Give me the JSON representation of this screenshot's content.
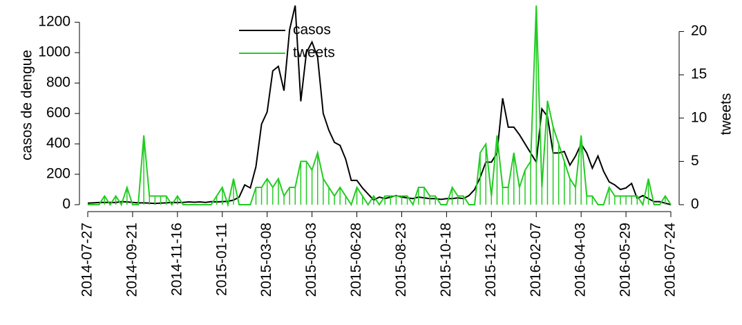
{
  "chart_data": {
    "type": "line",
    "y_label": "casos de dengue",
    "y2_label": "tweets",
    "categories": [
      "2014-07-27",
      null,
      null,
      null,
      null,
      null,
      null,
      null,
      "2014-09-21",
      null,
      null,
      null,
      null,
      null,
      null,
      null,
      "2014-11-16",
      null,
      null,
      null,
      null,
      null,
      null,
      null,
      "2015-01-11",
      null,
      null,
      null,
      null,
      null,
      null,
      null,
      "2015-03-08",
      null,
      null,
      null,
      null,
      null,
      null,
      null,
      "2015-05-03",
      null,
      null,
      null,
      null,
      null,
      null,
      null,
      "2015-06-28",
      null,
      null,
      null,
      null,
      null,
      null,
      null,
      "2015-08-23",
      null,
      null,
      null,
      null,
      null,
      null,
      null,
      "2015-10-18",
      null,
      null,
      null,
      null,
      null,
      null,
      null,
      "2015-12-13",
      null,
      null,
      null,
      null,
      null,
      null,
      null,
      "2016-02-07",
      null,
      null,
      null,
      null,
      null,
      null,
      null,
      "2016-04-03",
      null,
      null,
      null,
      null,
      null,
      null,
      null,
      "2016-05-29",
      null,
      null,
      null,
      null,
      null,
      null,
      null,
      "2016-07-24"
    ],
    "series": [
      {
        "name": "casos",
        "color": "#000000",
        "values": [
          10,
          12,
          14,
          15,
          15,
          14,
          20,
          18,
          15,
          12,
          12,
          10,
          8,
          10,
          12,
          15,
          14,
          15,
          18,
          16,
          18,
          15,
          20,
          18,
          20,
          22,
          30,
          50,
          130,
          110,
          250,
          530,
          610,
          880,
          910,
          750,
          1150,
          1310,
          680,
          1000,
          1070,
          970,
          600,
          490,
          410,
          390,
          300,
          160,
          160,
          110,
          70,
          30,
          50,
          40,
          50,
          60,
          50,
          45,
          40,
          50,
          45,
          40,
          40,
          35,
          40,
          40,
          45,
          40,
          60,
          100,
          180,
          280,
          280,
          340,
          700,
          510,
          510,
          460,
          400,
          340,
          280,
          630,
          580,
          340,
          340,
          350,
          260,
          320,
          400,
          340,
          240,
          320,
          220,
          150,
          130,
          100,
          110,
          140,
          40,
          60,
          40,
          20,
          20,
          10,
          0
        ]
      },
      {
        "name": "tweets",
        "color": "#22cc22",
        "axis": "y2",
        "values": [
          0,
          0,
          0,
          1,
          0,
          1,
          0,
          2,
          0,
          0,
          8,
          1,
          1,
          1,
          1,
          0,
          1,
          0,
          0,
          0,
          0,
          0,
          0,
          1,
          2,
          0,
          3,
          0,
          0,
          0,
          2,
          2,
          3,
          2,
          3,
          1,
          2,
          2,
          5,
          5,
          4,
          6,
          3,
          2,
          1,
          2,
          1,
          0,
          2,
          1,
          0,
          1,
          0,
          1,
          1,
          1,
          1,
          1,
          0,
          2,
          2,
          1,
          1,
          0,
          0,
          2,
          1,
          1,
          0,
          0,
          6,
          7,
          1,
          8,
          2,
          2,
          6,
          2,
          4,
          5,
          23,
          2,
          12,
          9,
          7,
          5,
          3,
          2,
          8,
          1,
          1,
          0,
          0,
          2,
          1,
          1,
          1,
          1,
          1,
          0,
          3,
          0,
          0,
          1,
          0
        ]
      }
    ],
    "ylim": [
      0,
      1310
    ],
    "yticks": [
      0,
      200,
      400,
      600,
      800,
      1000,
      1200
    ],
    "y2lim": [
      0,
      23
    ],
    "y2ticks": [
      0,
      5,
      10,
      15,
      20
    ],
    "legend": "top"
  }
}
